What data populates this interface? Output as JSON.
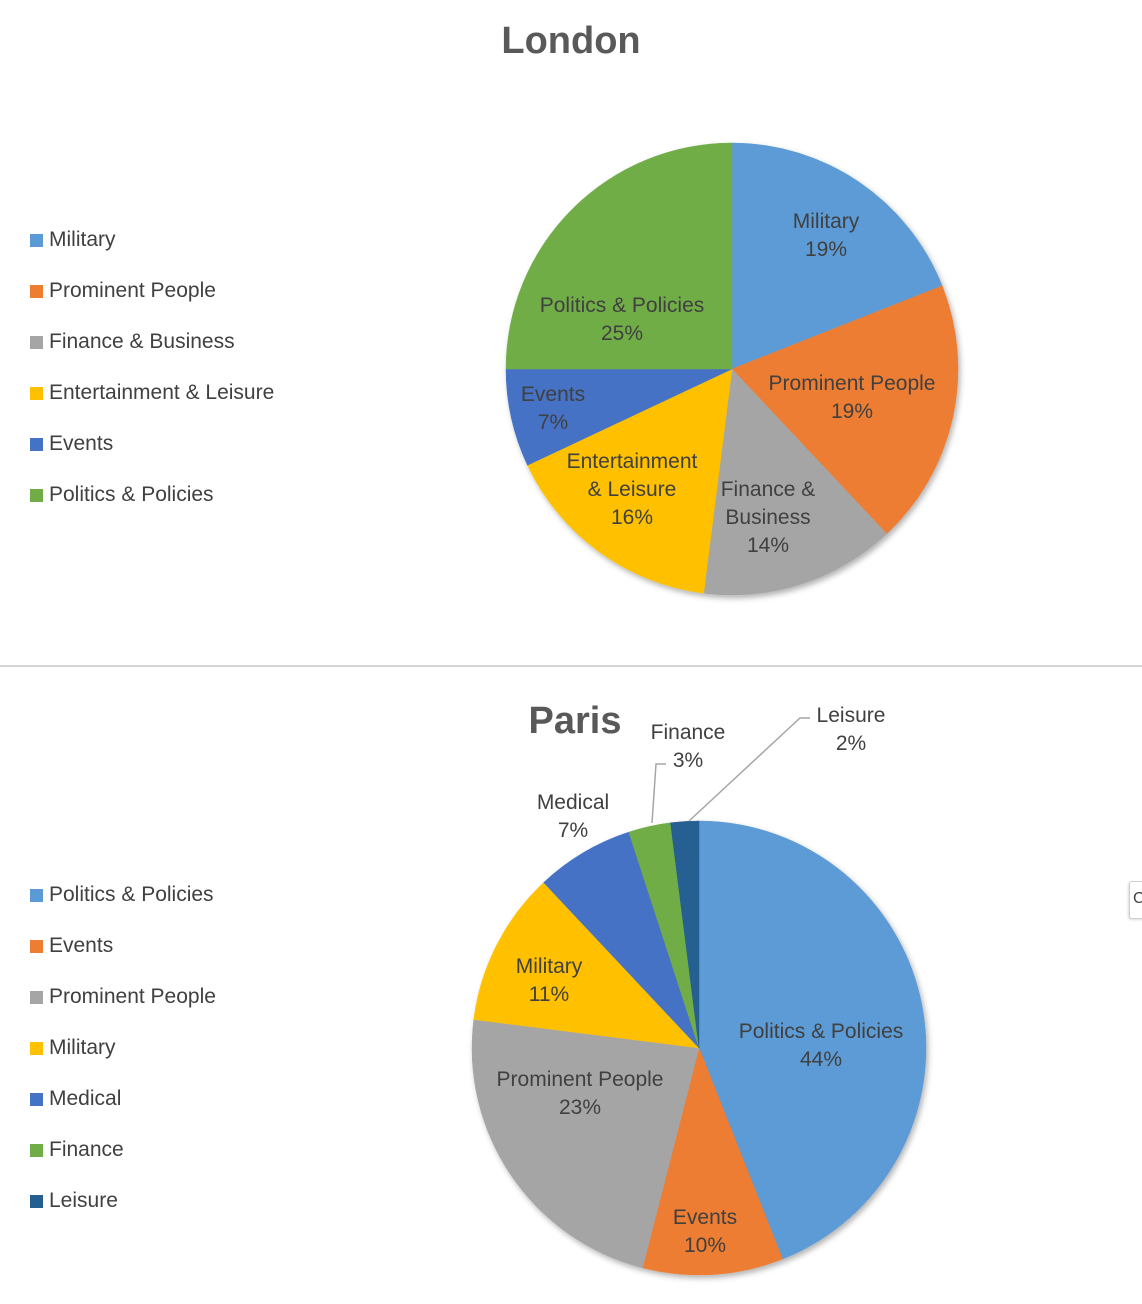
{
  "chart_data": [
    {
      "type": "pie",
      "title": "London",
      "legend_position": "left",
      "slices": [
        {
          "label": "Military",
          "label_lines": [
            "Military",
            "19%"
          ],
          "value": 19,
          "color": "#5B9BD5"
        },
        {
          "label": "Prominent People",
          "label_lines": [
            "Prominent People",
            "19%"
          ],
          "value": 19,
          "color": "#ED7D31"
        },
        {
          "label": "Finance & Business",
          "label_lines": [
            "Finance &",
            "Business",
            "14%"
          ],
          "value": 14,
          "color": "#A5A5A5"
        },
        {
          "label": "Entertainment & Leisure",
          "label_lines": [
            "Entertainment",
            "& Leisure",
            "16%"
          ],
          "value": 16,
          "color": "#FFC000"
        },
        {
          "label": "Events",
          "label_lines": [
            "Events",
            "7%"
          ],
          "value": 7,
          "color": "#4472C4"
        },
        {
          "label": "Politics & Policies",
          "label_lines": [
            "Politics & Policies",
            "25%"
          ],
          "value": 25,
          "color": "#70AD47"
        }
      ]
    },
    {
      "type": "pie",
      "title": "Paris",
      "legend_position": "left",
      "slices": [
        {
          "label": "Politics & Policies",
          "label_lines": [
            "Politics & Policies",
            "44%"
          ],
          "value": 44,
          "color": "#5B9BD5"
        },
        {
          "label": "Events",
          "label_lines": [
            "Events",
            "10%"
          ],
          "value": 10,
          "color": "#ED7D31"
        },
        {
          "label": "Prominent People",
          "label_lines": [
            "Prominent People",
            "23%"
          ],
          "value": 23,
          "color": "#A5A5A5"
        },
        {
          "label": "Military",
          "label_lines": [
            "Military",
            "11%"
          ],
          "value": 11,
          "color": "#FFC000"
        },
        {
          "label": "Medical",
          "label_lines": [
            "Medical",
            "7%"
          ],
          "value": 7,
          "color": "#4472C4"
        },
        {
          "label": "Finance",
          "label_lines": [
            "Finance",
            "3%"
          ],
          "value": 3,
          "color": "#70AD47"
        },
        {
          "label": "Leisure",
          "label_lines": [
            "Leisure",
            "2%"
          ],
          "value": 2,
          "color": "#255E91"
        }
      ]
    }
  ],
  "edge_tab": {
    "glyph": "C"
  }
}
